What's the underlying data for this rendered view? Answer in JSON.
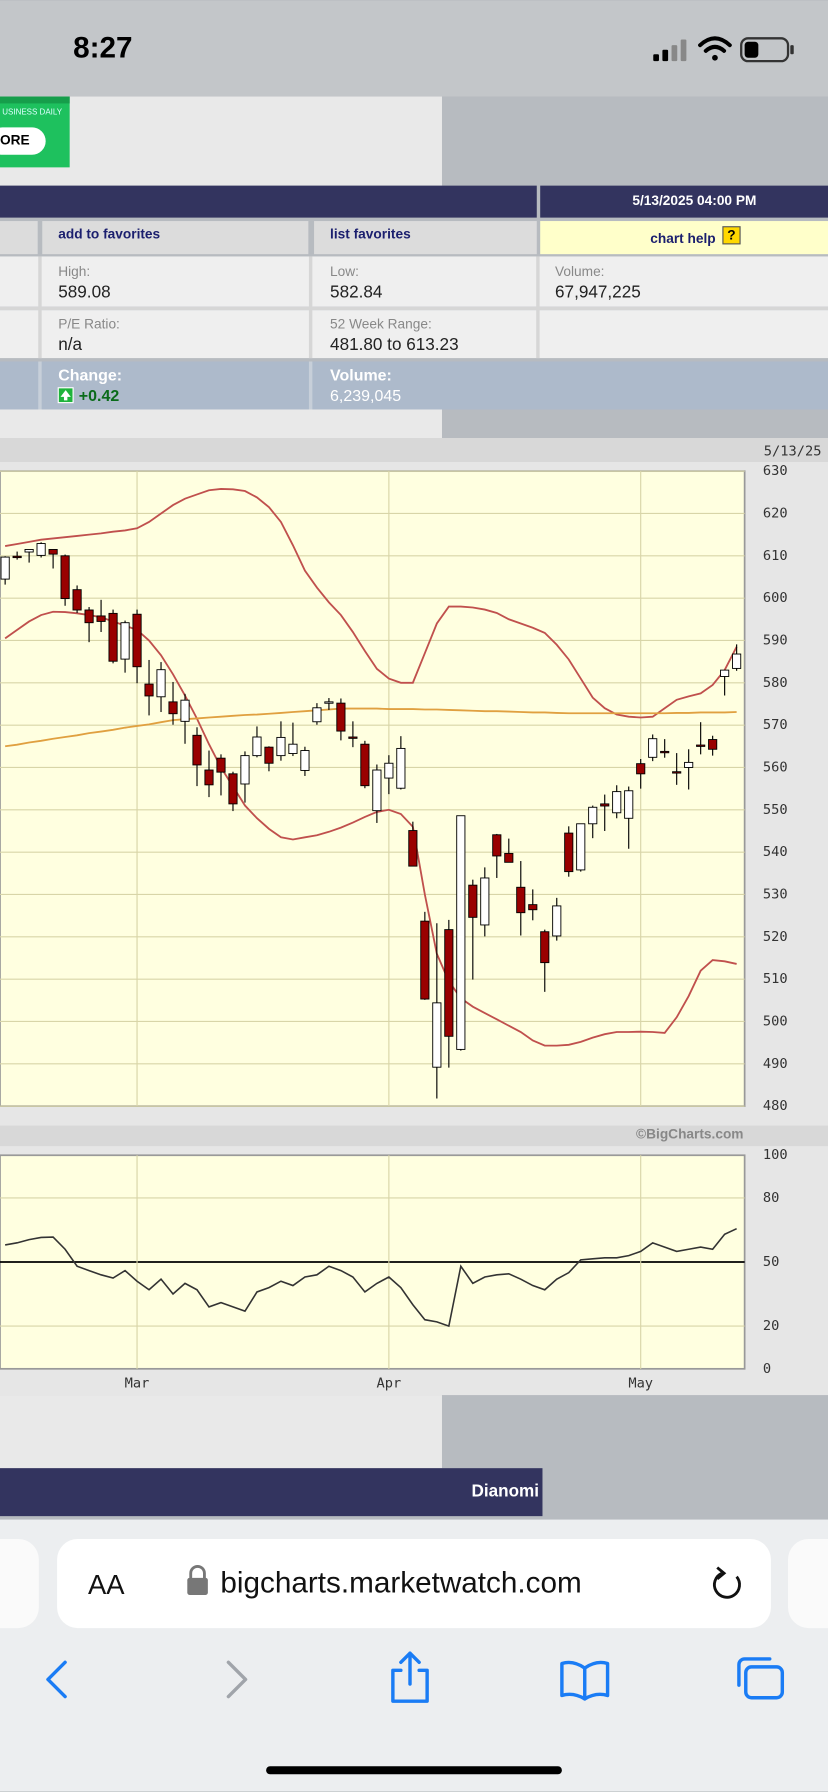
{
  "status_bar": {
    "time": "8:27"
  },
  "ad": {
    "subtext": "USINESS DAILY",
    "button": "ORE"
  },
  "quote": {
    "date_time": "5/13/2025 04:00 PM",
    "add_favorites": "add to favorites",
    "list_favorites": "list favorites",
    "chart_help": "chart help",
    "help_icon": "?",
    "high_label": "High:",
    "high": "589.08",
    "low_label": "Low:",
    "low": "582.84",
    "volume_label": "Volume:",
    "volume": "67,947,225",
    "pe_label": "P/E Ratio:",
    "pe": "n/a",
    "range_label": "52 Week Range:",
    "range": "481.80 to 613.23",
    "change_label": "Change:",
    "change": "+0.42",
    "day_volume_label": "Volume:",
    "day_volume": "6,239,045"
  },
  "chart_data": {
    "type": "candlestick",
    "date_label": "5/13/25",
    "credit": "©BigCharts.com",
    "categories": [
      null,
      null,
      null,
      null,
      null,
      null,
      null,
      null,
      null,
      null,
      null,
      "Mar",
      null,
      null,
      null,
      null,
      null,
      null,
      null,
      null,
      null,
      null,
      null,
      null,
      null,
      null,
      null,
      null,
      null,
      null,
      null,
      null,
      "Apr",
      null,
      null,
      null,
      null,
      null,
      null,
      null,
      null,
      null,
      null,
      null,
      null,
      null,
      null,
      null,
      null,
      null,
      null,
      null,
      null,
      "May",
      null,
      null,
      null,
      null,
      null,
      null,
      null,
      null
    ],
    "open": [
      604.5,
      609.9,
      610.9,
      610.1,
      611.5,
      610.0,
      602.0,
      597.2,
      595.8,
      596.4,
      585.6,
      596.2,
      579.7,
      576.7,
      575.5,
      570.9,
      567.6,
      559.4,
      562.2,
      558.5,
      556.1,
      562.8,
      564.8,
      562.8,
      563.3,
      559.3,
      570.8,
      575.3,
      575.2,
      567.2,
      565.5,
      549.8,
      557.5,
      555.1,
      545.1,
      523.7,
      489.2,
      521.7,
      493.4,
      532.2,
      522.8,
      544.1,
      539.7,
      531.7,
      527.6,
      521.2,
      520.2,
      544.5,
      535.8,
      546.7,
      551.4,
      549.3,
      548.0,
      560.9,
      562.4,
      563.8,
      559.0,
      560.0,
      565.3,
      566.6,
      581.5,
      583.4
    ],
    "high": [
      609.9,
      611.0,
      611.5,
      613.2,
      611.5,
      610.3,
      603.0,
      597.9,
      599.6,
      597.3,
      594.7,
      597.3,
      585.4,
      584.9,
      580.2,
      577.4,
      569.5,
      564.0,
      563.1,
      559.0,
      563.8,
      569.7,
      565.0,
      570.9,
      570.6,
      564.9,
      575.2,
      576.4,
      576.3,
      570.9,
      566.3,
      560.7,
      562.9,
      567.4,
      547.2,
      525.9,
      523.2,
      524.0,
      548.6,
      533.5,
      536.4,
      544.3,
      543.2,
      537.9,
      531.2,
      521.7,
      529.2,
      546.1,
      546.6,
      551.0,
      553.6,
      555.8,
      555.5,
      562.0,
      567.8,
      566.7,
      563.4,
      564.3,
      570.7,
      567.5,
      583.0,
      589.08
    ],
    "low": [
      603.2,
      609.1,
      608.4,
      609.6,
      607.0,
      598.2,
      596.5,
      589.6,
      592.0,
      584.6,
      582.4,
      579.9,
      572.3,
      573.1,
      570.1,
      565.6,
      555.6,
      553.0,
      553.4,
      549.7,
      551.7,
      562.4,
      559.1,
      561.6,
      562.7,
      558.0,
      570.1,
      573.6,
      566.4,
      564.8,
      555.1,
      546.9,
      553.7,
      554.8,
      536.7,
      505.1,
      481.8,
      489.1,
      493.1,
      509.9,
      520.1,
      533.9,
      537.9,
      520.3,
      523.9,
      507.0,
      519.1,
      534.2,
      535.4,
      543.3,
      545.0,
      548.0,
      540.8,
      555.0,
      561.5,
      562.3,
      555.9,
      554.8,
      563.1,
      562.8,
      577.0,
      582.84
    ],
    "close": [
      609.7,
      609.7,
      611.5,
      612.9,
      610.4,
      599.9,
      597.2,
      594.2,
      594.5,
      585.1,
      594.2,
      583.8,
      576.9,
      583.1,
      572.7,
      575.9,
      560.6,
      555.9,
      558.9,
      551.4,
      562.8,
      567.2,
      561.0,
      567.1,
      565.5,
      564.0,
      574.1,
      575.5,
      568.6,
      567.1,
      555.7,
      559.4,
      561.0,
      564.5,
      536.7,
      505.3,
      504.4,
      496.5,
      548.6,
      524.6,
      533.9,
      539.1,
      537.6,
      525.7,
      526.4,
      513.9,
      527.3,
      535.4,
      546.7,
      550.6,
      550.9,
      554.3,
      554.5,
      558.5,
      566.8,
      563.5,
      558.8,
      561.2,
      565.1,
      564.3,
      583.0,
      586.8
    ],
    "up_color": "#ffffff",
    "down_color": "#990000",
    "series": [
      {
        "color": "#c0504d",
        "values": [
          612.3,
          612.8,
          613.3,
          613.8,
          614.1,
          614.4,
          614.7,
          615,
          615.3,
          615.7,
          616,
          616.5,
          618,
          620,
          622,
          623.5,
          624.5,
          625.5,
          625.8,
          625.7,
          625.3,
          623.8,
          621.5,
          618,
          612.5,
          606.5,
          602.5,
          599,
          596,
          592,
          587.5,
          583.3,
          581,
          580,
          580,
          587,
          594,
          598,
          598,
          597.8,
          597.3,
          596.5,
          595,
          594,
          593,
          591.8,
          589,
          585.5,
          581,
          576.5,
          574,
          572.5,
          572,
          571.8,
          572,
          574,
          576,
          576.8,
          577.5,
          579.5,
          583,
          588.5
        ]
      },
      {
        "color": "#c0504d",
        "values": [
          590.5,
          592.5,
          594.5,
          596,
          596.8,
          596.7,
          596.4,
          596,
          595.5,
          594.5,
          593.5,
          592.5,
          590,
          586.5,
          582,
          577,
          571.5,
          565.5,
          560,
          555.5,
          551,
          548,
          545.5,
          543.5,
          543,
          543.5,
          544,
          544.8,
          545.8,
          547,
          548.3,
          549.5,
          550,
          549,
          546,
          530,
          516,
          509.5,
          505.5,
          503.5,
          502,
          500.5,
          499,
          497.5,
          495.5,
          494.3,
          494.3,
          494.5,
          495.2,
          496.2,
          497,
          497.5,
          497.5,
          497.6,
          497.5,
          497.3,
          501,
          506,
          512,
          514.5,
          514.2,
          513.6
        ]
      },
      {
        "color": "#e0a040",
        "values": [
          565,
          565.4,
          565.9,
          566.3,
          566.8,
          567.2,
          567.6,
          568.1,
          568.5,
          568.9,
          569.4,
          569.8,
          570.2,
          570.7,
          571.2,
          571.4,
          571.6,
          571.8,
          572,
          572.2,
          572.4,
          572.5,
          572.7,
          572.9,
          573.1,
          573.3,
          573.5,
          573.7,
          573.9,
          573.9,
          573.9,
          573.9,
          573.8,
          573.8,
          573.8,
          573.7,
          573.7,
          573.6,
          573.5,
          573.4,
          573.3,
          573.3,
          573.2,
          573.1,
          573,
          573,
          572.9,
          572.8,
          572.8,
          572.8,
          572.8,
          572.8,
          572.8,
          572.8,
          572.8,
          572.8,
          572.9,
          572.9,
          573,
          573,
          573,
          573.1
        ]
      }
    ],
    "ylim": [
      480,
      630
    ],
    "yticks": [
      480,
      490,
      500,
      510,
      520,
      530,
      540,
      550,
      560,
      570,
      580,
      590,
      600,
      610,
      620,
      630
    ],
    "grid": true,
    "indicator": {
      "color": "#333333",
      "values": [
        58,
        59,
        60.5,
        61.5,
        61.7,
        56,
        48,
        46,
        44,
        42.5,
        46,
        41,
        37,
        42,
        35,
        40,
        37,
        29,
        31,
        29,
        27,
        36,
        38,
        41,
        39,
        43,
        44,
        48,
        46,
        43,
        36,
        40,
        43,
        38,
        30,
        23,
        22,
        20,
        48,
        40,
        43,
        44,
        44.5,
        42,
        39,
        37,
        42,
        45,
        51,
        51.5,
        52,
        52,
        53,
        55,
        59,
        57,
        55,
        56,
        57,
        56,
        63,
        65.6
      ],
      "ylim": [
        0,
        100
      ],
      "yticks": [
        0,
        20,
        50,
        80,
        100
      ],
      "reference": 50
    }
  },
  "footer_ad": {
    "brand": "Dianomi"
  },
  "browser": {
    "text_size": "AA",
    "url": "bigcharts.marketwatch.com"
  }
}
